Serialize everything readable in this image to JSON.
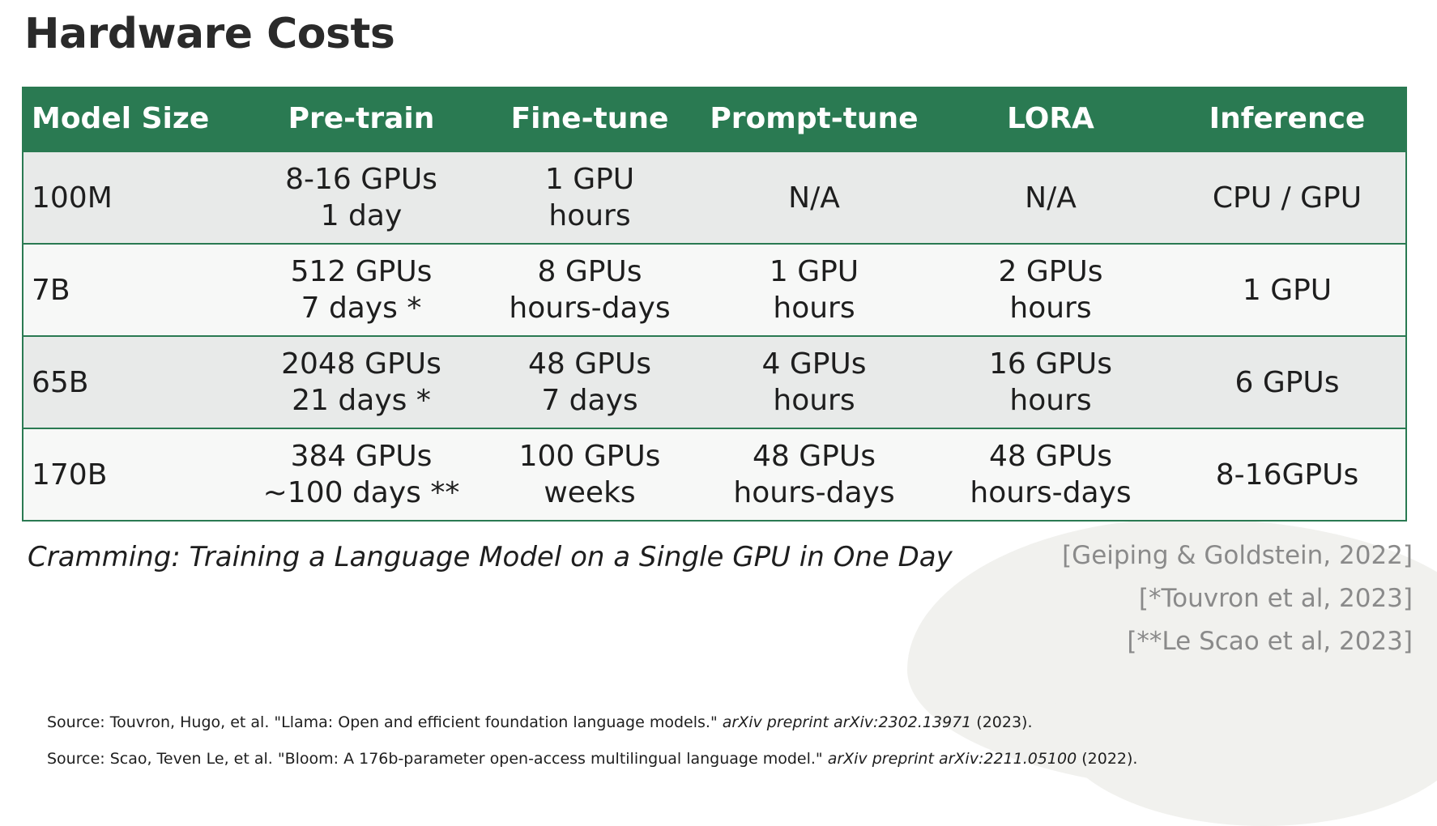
{
  "title": "Hardware Costs",
  "table": {
    "headers": [
      "Model Size",
      "Pre-train",
      "Fine-tune",
      "Prompt-tune",
      "LORA",
      "Inference"
    ],
    "rows": [
      {
        "model": "100M",
        "pretrain": [
          "8-16 GPUs",
          "1 day"
        ],
        "finetune": [
          "1 GPU",
          "hours"
        ],
        "prompttune": [
          "N/A"
        ],
        "lora": [
          "N/A"
        ],
        "inference": [
          "CPU / GPU"
        ]
      },
      {
        "model": "7B",
        "pretrain": [
          "512 GPUs",
          "7 days *"
        ],
        "finetune": [
          "8 GPUs",
          "hours-days"
        ],
        "prompttune": [
          "1 GPU",
          "hours"
        ],
        "lora": [
          "2 GPUs",
          "hours"
        ],
        "inference": [
          "1 GPU"
        ]
      },
      {
        "model": "65B",
        "pretrain": [
          "2048 GPUs",
          "21 days *"
        ],
        "finetune": [
          "48 GPUs",
          "7 days"
        ],
        "prompttune": [
          "4 GPUs",
          "hours"
        ],
        "lora": [
          "16 GPUs",
          "hours"
        ],
        "inference": [
          "6 GPUs"
        ]
      },
      {
        "model": "170B",
        "pretrain": [
          "384 GPUs",
          "~100 days **"
        ],
        "finetune": [
          "100 GPUs",
          "weeks"
        ],
        "prompttune": [
          "48 GPUs",
          "hours-days"
        ],
        "lora": [
          "48 GPUs",
          "hours-days"
        ],
        "inference": [
          "8-16GPUs"
        ]
      }
    ]
  },
  "caption": "Cramming: Training a Language Model on a Single GPU in One Day",
  "references": [
    "[Geiping & Goldstein, 2022]",
    "[*Touvron et al, 2023]",
    "[**Le Scao et al, 2023]"
  ],
  "sources": [
    {
      "prefix": "Source: Touvron, Hugo, et al. \"Llama: Open and efficient foundation language models.\" ",
      "journal": "arXiv preprint arXiv:2302.13971",
      "suffix": " (2023)."
    },
    {
      "prefix": "Source: Scao, Teven Le, et al. \"Bloom: A 176b-parameter open-access multilingual language model.\" ",
      "journal": "arXiv preprint arXiv:2211.05100",
      "suffix": " (2022)."
    }
  ]
}
